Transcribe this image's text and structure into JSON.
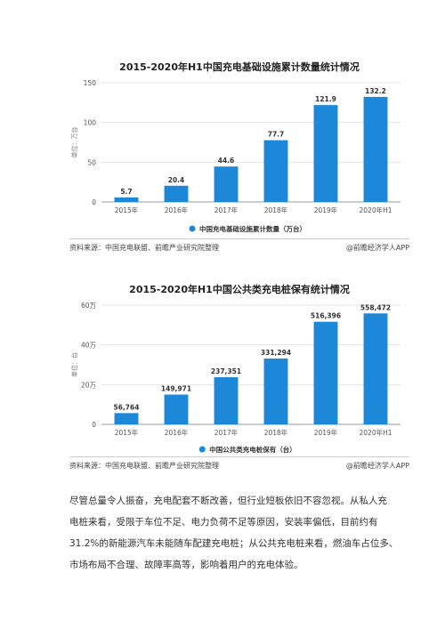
{
  "chart_data": [
    {
      "type": "bar",
      "title": "2015-2020年H1中国充电基础设施累计数量统计情况",
      "categories": [
        "2015年",
        "2016年",
        "2017年",
        "2018年",
        "2019年",
        "2020年H1"
      ],
      "series": [
        {
          "name": "中国充电基础设施累计数量（万台）",
          "values": [
            5.7,
            20.4,
            44.6,
            77.7,
            121.9,
            132.2
          ]
        }
      ],
      "value_labels": [
        "5.7",
        "20.4",
        "44.6",
        "77.7",
        "121.9",
        "132.2"
      ],
      "ylabel": "单位：万台",
      "ylim": [
        0,
        150
      ],
      "yticks": [
        0,
        50,
        100,
        150
      ],
      "ytick_labels": [
        "0",
        "50",
        "100",
        "150"
      ],
      "grid": true,
      "legend_position": "bottom",
      "color": "#1e88d8"
    },
    {
      "type": "bar",
      "title": "2015-2020年H1中国公共类充电桩保有统计情况",
      "categories": [
        "2015年",
        "2016年",
        "2017年",
        "2018年",
        "2019年",
        "2020年H1"
      ],
      "series": [
        {
          "name": "中国公共类充电桩保有（台）",
          "values": [
            56764,
            149971,
            237351,
            331294,
            516396,
            558472
          ]
        }
      ],
      "value_labels": [
        "56,764",
        "149,971",
        "237,351",
        "331,294",
        "516,396",
        "558,472"
      ],
      "ylabel": "单位：台",
      "ylim": [
        0,
        600000
      ],
      "yticks": [
        0,
        200000,
        400000,
        600000
      ],
      "ytick_labels": [
        "0",
        "20万",
        "40万",
        "60万"
      ],
      "grid": true,
      "legend_position": "bottom",
      "color": "#1e88d8"
    }
  ],
  "sources": [
    {
      "left": "资料来源：中国充电联盟、前瞻产业研究院整理",
      "right": "@前瞻经济学人APP"
    },
    {
      "left": "资料来源：中国充电联盟、前瞻产业研究院整理",
      "right": "@前瞻经济学人APP"
    }
  ],
  "body_lines": [
    "尽管总量令人振奋，充电配套不断改善，但行业短板依旧不容忽视。从私人充",
    "电桩来看，受限于车位不足、电力负荷不足等原因，安装率偏低，目前约有",
    "31.2%的新能源汽车未能随车配建充电桩；从公共充电桩来看，燃油车占位多、",
    "市场布局不合理、故障率高等，影响着用户的充电体验。"
  ]
}
